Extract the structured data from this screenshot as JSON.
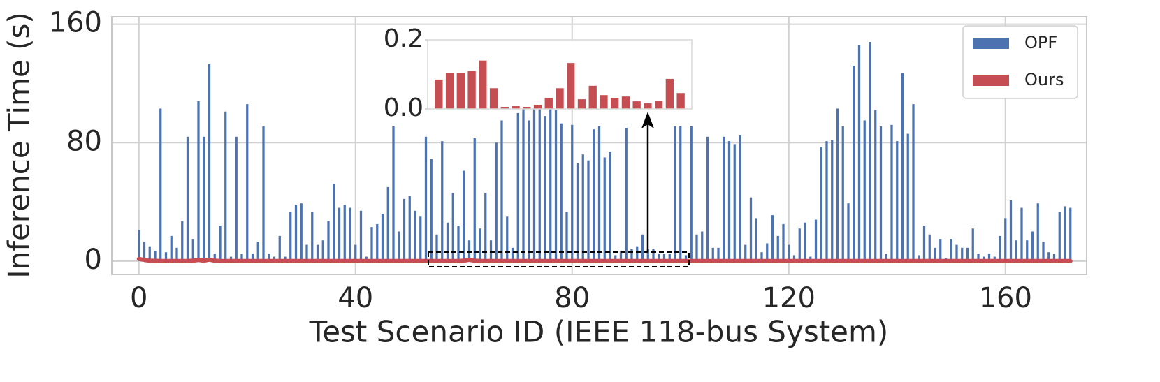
{
  "chart_data": [
    {
      "type": "bar",
      "xlabel": "Test Scenario ID (IEEE 118-bus System)",
      "ylabel": "Inference Time (s)",
      "x": [
        0,
        1,
        2,
        3,
        4,
        5,
        6,
        7,
        8,
        9,
        10,
        11,
        12,
        13,
        14,
        15,
        16,
        17,
        18,
        19,
        20,
        21,
        22,
        23,
        24,
        25,
        26,
        27,
        28,
        29,
        30,
        31,
        32,
        33,
        34,
        35,
        36,
        37,
        38,
        39,
        40,
        41,
        42,
        43,
        44,
        45,
        46,
        47,
        48,
        49,
        50,
        51,
        52,
        53,
        54,
        55,
        56,
        57,
        58,
        59,
        60,
        61,
        62,
        63,
        64,
        65,
        66,
        67,
        68,
        69,
        70,
        71,
        72,
        73,
        74,
        75,
        76,
        77,
        78,
        79,
        80,
        81,
        82,
        83,
        84,
        85,
        86,
        87,
        88,
        89,
        90,
        91,
        92,
        93,
        94,
        95,
        96,
        97,
        98,
        99,
        100,
        101,
        102,
        103,
        104,
        105,
        106,
        107,
        108,
        109,
        110,
        111,
        112,
        113,
        114,
        115,
        116,
        117,
        118,
        119,
        120,
        121,
        122,
        123,
        124,
        125,
        126,
        127,
        128,
        129,
        130,
        131,
        132,
        133,
        134,
        135,
        136,
        137,
        138,
        139,
        140,
        141,
        142,
        143,
        144,
        145,
        146,
        147,
        148,
        149,
        150,
        151,
        152,
        153,
        154,
        155,
        156,
        157,
        158,
        159,
        160,
        161,
        162,
        163,
        164,
        165,
        166,
        167,
        168,
        169,
        170,
        171,
        172
      ],
      "series": [
        {
          "name": "OPF",
          "type": "bar",
          "color": "#4c72b0",
          "values": [
            21,
            13,
            10,
            7,
            103,
            6,
            17,
            9,
            27,
            84,
            15,
            108,
            84,
            133,
            5,
            24,
            101,
            3,
            84,
            5,
            106,
            5,
            13,
            91,
            5,
            3,
            17,
            3,
            33,
            38,
            39,
            11,
            33,
            11,
            14,
            27,
            52,
            36,
            38,
            36,
            11,
            34,
            3,
            23,
            25,
            32,
            50,
            91,
            20,
            42,
            44,
            34,
            30,
            84,
            69,
            18,
            81,
            26,
            46,
            24,
            61,
            14,
            83,
            22,
            46,
            14,
            80,
            95,
            30,
            9,
            100,
            110,
            95,
            120,
            105,
            98,
            115,
            102,
            93,
            33,
            92,
            66,
            72,
            68,
            89,
            91,
            70,
            74,
            4,
            7,
            90,
            8,
            10,
            18,
            8,
            8,
            5,
            5,
            5,
            91,
            91,
            4,
            91,
            18,
            20,
            84,
            9,
            9,
            84,
            81,
            79,
            85,
            11,
            43,
            29,
            6,
            12,
            31,
            17,
            25,
            11,
            4,
            22,
            26,
            3,
            28,
            77,
            81,
            82,
            103,
            91,
            39,
            132,
            146,
            95,
            148,
            102,
            91,
            5,
            92,
            81,
            127,
            86,
            106,
            4,
            24,
            18,
            9,
            15,
            2,
            15,
            11,
            9,
            9,
            22,
            5,
            3,
            5,
            3,
            17,
            29,
            41,
            14,
            36,
            14,
            20,
            39,
            13,
            6,
            5,
            33,
            37,
            36
          ]
        },
        {
          "name": "Ours",
          "type": "line",
          "color": "#c44e52",
          "values": [
            1.5,
            0.8,
            0.3,
            0.2,
            0.1,
            0.1,
            0.1,
            0.1,
            0.1,
            0.1,
            0.3,
            0.8,
            0.3,
            1.0,
            0.3,
            0.1,
            0.1,
            0.1,
            0.1,
            0.1,
            0.1,
            0.1,
            0.1,
            0.1,
            0.1,
            0.1,
            0.1,
            0.1,
            0.1,
            0.1,
            0.1,
            0.1,
            0.1,
            0.1,
            0.1,
            0.1,
            0.1,
            0.1,
            0.1,
            0.1,
            0.1,
            0.1,
            0.1,
            0.1,
            0.1,
            0.1,
            0.1,
            0.1,
            0.1,
            0.1,
            0.1,
            0.1,
            0.1,
            0.1,
            0.1,
            0.1,
            0.1,
            0.1,
            0.1,
            0.1,
            0.3,
            0.9,
            0.3,
            0.1,
            0.1,
            0.1,
            0.1,
            0.1,
            0.1,
            0.1,
            0.1,
            0.1,
            0.1,
            0.1,
            0.1,
            0.1,
            0.1,
            0.1,
            0.1,
            0.1,
            0.1,
            0.1,
            0.1,
            0.1,
            0.1,
            0.1,
            0.1,
            0.1,
            0.1,
            0.1,
            0.1,
            0.1,
            0.1,
            0.1,
            0.1,
            0.1,
            0.1,
            0.1,
            0.1,
            0.1,
            0.1,
            0.1,
            0.1,
            0.1,
            0.1,
            0.1,
            0.1,
            0.1,
            0.1,
            0.1,
            0.1,
            0.1,
            0.1,
            0.1,
            0.1,
            0.1,
            0.1,
            0.1,
            0.1,
            0.1,
            0.1,
            0.1,
            0.1,
            0.1,
            0.1,
            0.1,
            0.1,
            0.1,
            0.1,
            0.1,
            0.1,
            0.1,
            0.1,
            0.1,
            0.1,
            0.1,
            0.1,
            0.1,
            0.1,
            0.1,
            0.1,
            0.1,
            0.1,
            0.1,
            0.1,
            0.1,
            0.1,
            0.1,
            0.1,
            0.1,
            0.1,
            0.1,
            0.1,
            0.1,
            0.1,
            0.1,
            0.1,
            0.1,
            0.1,
            0.1,
            0.1,
            0.1,
            0.1,
            0.1,
            0.1,
            0.1,
            0.1,
            0.1,
            0.1,
            0.1,
            0.1,
            0.1,
            0.1
          ]
        }
      ],
      "xlim": [
        -5,
        175
      ],
      "xticks": [
        0,
        40,
        80,
        120,
        160
      ],
      "ylim": [
        -9,
        165
      ],
      "yticks": [
        0,
        80,
        160
      ],
      "grid": true,
      "legend": "upper right"
    },
    {
      "type": "bar",
      "color": "#c44e52",
      "values": [
        0.085,
        0.105,
        0.105,
        0.11,
        0.14,
        0.06,
        0.006,
        0.008,
        0.006,
        0.012,
        0.032,
        0.06,
        0.133,
        0.028,
        0.067,
        0.04,
        0.032,
        0.036,
        0.022,
        0.016,
        0.024,
        0.087,
        0.046
      ],
      "ylim": [
        0,
        0.2
      ],
      "yticks": [
        {
          "value": 0,
          "label": "0.0"
        },
        0.2
      ]
    }
  ]
}
